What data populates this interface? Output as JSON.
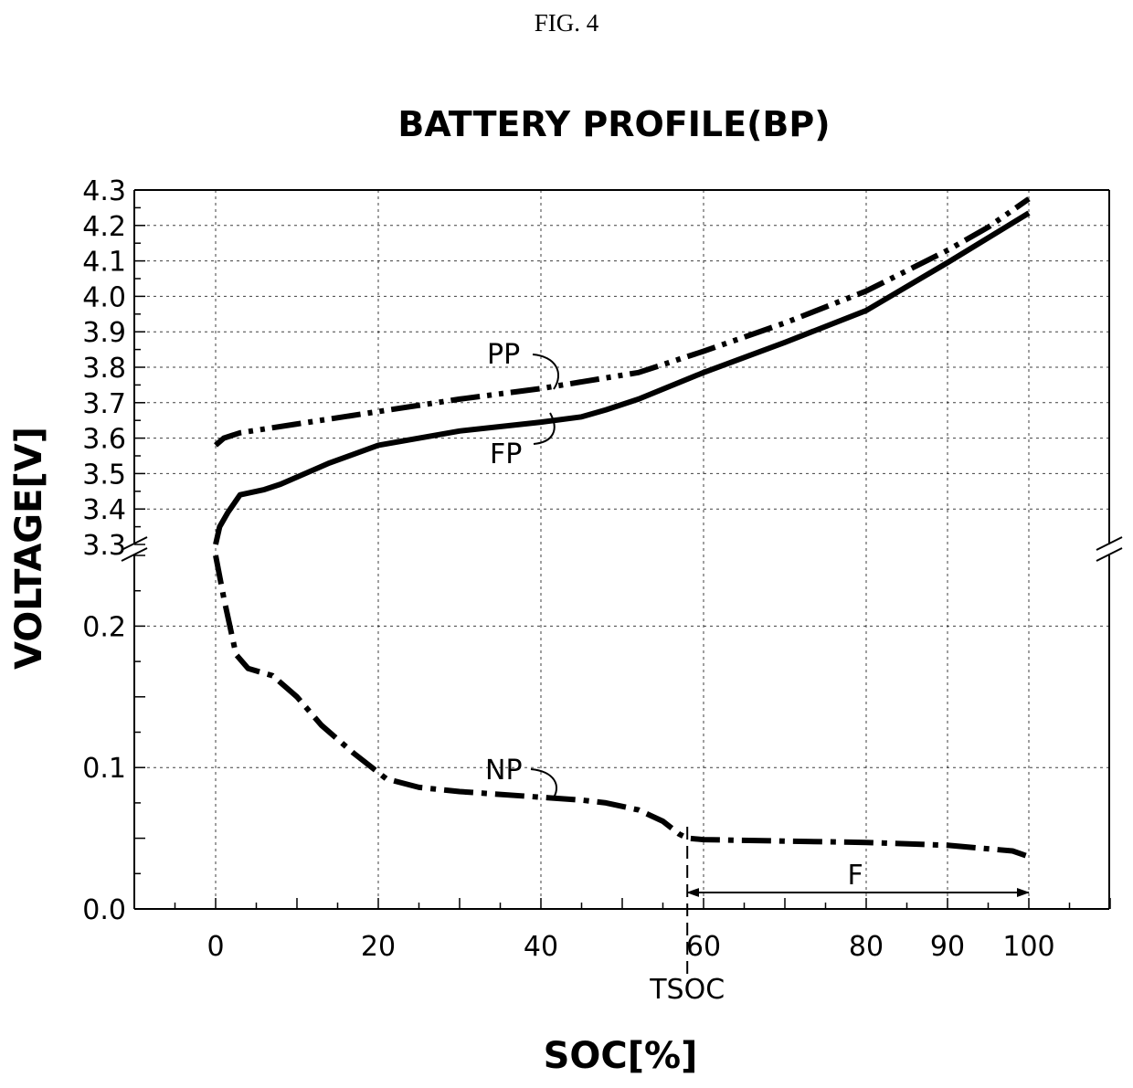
{
  "figure_label": "FIG. 4",
  "chart_data": {
    "type": "line",
    "title": "BATTERY PROFILE(BP)",
    "xlabel": "SOC[%]",
    "ylabel": "VOLTAGE[V]",
    "xlim": [
      -10,
      110
    ],
    "x_ticks": [
      0,
      20,
      40,
      60,
      80,
      90,
      100
    ],
    "y_axis_break": true,
    "y_upper_range": [
      3.3,
      4.3
    ],
    "y_upper_ticks": [
      "3.3",
      "3.4",
      "3.5",
      "3.6",
      "3.7",
      "3.8",
      "3.9",
      "4.0",
      "4.1",
      "4.2",
      "4.3"
    ],
    "y_lower_range": [
      0.0,
      0.25
    ],
    "y_lower_ticks": [
      "0.0",
      "0.1",
      "0.2"
    ],
    "grid": true,
    "series": [
      {
        "name": "PP",
        "line_style": "dash-dot-dot",
        "points": [
          [
            0,
            3.58
          ],
          [
            1,
            3.6
          ],
          [
            3,
            3.615
          ],
          [
            10,
            3.64
          ],
          [
            20,
            3.675
          ],
          [
            30,
            3.71
          ],
          [
            40,
            3.74
          ],
          [
            52,
            3.785
          ],
          [
            60,
            3.845
          ],
          [
            70,
            3.925
          ],
          [
            80,
            4.015
          ],
          [
            90,
            4.13
          ],
          [
            95,
            4.195
          ],
          [
            100,
            4.275
          ]
        ]
      },
      {
        "name": "FP",
        "line_style": "solid",
        "points": [
          [
            0,
            3.3
          ],
          [
            0.5,
            3.35
          ],
          [
            1.5,
            3.39
          ],
          [
            3,
            3.44
          ],
          [
            6,
            3.455
          ],
          [
            8,
            3.47
          ],
          [
            14,
            3.53
          ],
          [
            20,
            3.58
          ],
          [
            30,
            3.62
          ],
          [
            40,
            3.645
          ],
          [
            45,
            3.66
          ],
          [
            48,
            3.68
          ],
          [
            52,
            3.71
          ],
          [
            60,
            3.785
          ],
          [
            70,
            3.87
          ],
          [
            80,
            3.96
          ],
          [
            90,
            4.095
          ],
          [
            100,
            4.235
          ]
        ]
      },
      {
        "name": "NP",
        "line_style": "dash-dot",
        "points": [
          [
            0,
            0.25
          ],
          [
            1,
            0.22
          ],
          [
            2.5,
            0.18
          ],
          [
            4,
            0.17
          ],
          [
            7,
            0.165
          ],
          [
            10,
            0.15
          ],
          [
            13,
            0.13
          ],
          [
            17,
            0.11
          ],
          [
            21,
            0.092
          ],
          [
            25,
            0.086
          ],
          [
            30,
            0.083
          ],
          [
            40,
            0.079
          ],
          [
            45,
            0.077
          ],
          [
            48,
            0.075
          ],
          [
            52,
            0.07
          ],
          [
            55,
            0.062
          ],
          [
            57,
            0.053
          ],
          [
            58,
            0.05
          ],
          [
            60,
            0.049
          ],
          [
            70,
            0.048
          ],
          [
            80,
            0.047
          ],
          [
            90,
            0.045
          ],
          [
            98,
            0.041
          ],
          [
            100,
            0.037
          ]
        ]
      }
    ],
    "annotations": [
      {
        "text": "PP",
        "target_series": "PP"
      },
      {
        "text": "FP",
        "target_series": "FP"
      },
      {
        "text": "NP",
        "target_series": "NP"
      },
      {
        "text": "TSOC",
        "x": 58,
        "kind": "vertical-dashed-marker"
      },
      {
        "text": "F",
        "x_from": 58,
        "x_to": 100,
        "kind": "double-arrow-span"
      }
    ]
  }
}
